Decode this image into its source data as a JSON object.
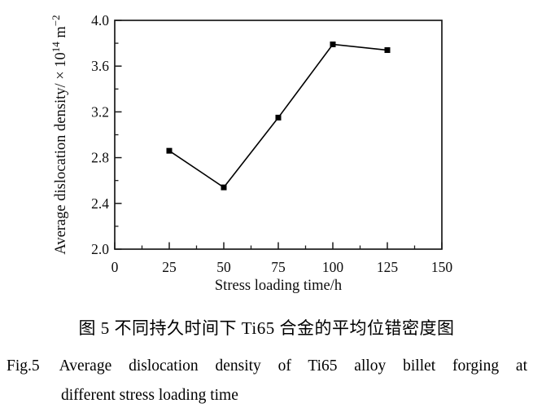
{
  "chart_data": {
    "type": "line",
    "x": [
      25,
      50,
      75,
      100,
      125
    ],
    "values": [
      2.86,
      2.54,
      3.15,
      3.79,
      3.74
    ],
    "series_name": "Average dislocation density of Ti65 alloy",
    "xlabel": "Stress loading time/h",
    "ylabel": "Average dislocation density/ × 10^14 m^-2",
    "ylabel_parts": [
      {
        "text": "Average dislocation density/ × 10",
        "sup": false
      },
      {
        "text": "14",
        "sup": true
      },
      {
        "text": " m",
        "sup": false
      },
      {
        "text": "−2",
        "sup": true
      }
    ],
    "xlim": [
      0,
      150
    ],
    "ylim": [
      2.0,
      4.0
    ],
    "x_major_ticks": [
      0,
      25,
      50,
      75,
      100,
      125,
      150
    ],
    "x_tick_labels": [
      "0",
      "25",
      "50",
      "75",
      "100",
      "125",
      "150"
    ],
    "y_major_ticks": [
      2.0,
      2.4,
      2.8,
      3.2,
      3.6,
      4.0
    ],
    "y_tick_labels": [
      "2.0",
      "2.4",
      "2.8",
      "3.2",
      "3.6",
      "4.0"
    ],
    "x_minor_step": 12.5,
    "y_minor_step": 0.2,
    "marker": "filled-square",
    "marker_size": 7,
    "line_color": "#000000",
    "marker_color": "#000000",
    "frame_color": "#1a1a1a",
    "grid": false,
    "legend": "none"
  },
  "captions": {
    "chinese": "图 5 不同持久时间下 Ti65 合金的平均位错密度图",
    "fig_label": "Fig.5",
    "english_line1": "Average dislocation density of Ti65 alloy billet forging at",
    "english_line2": "different stress loading time"
  }
}
